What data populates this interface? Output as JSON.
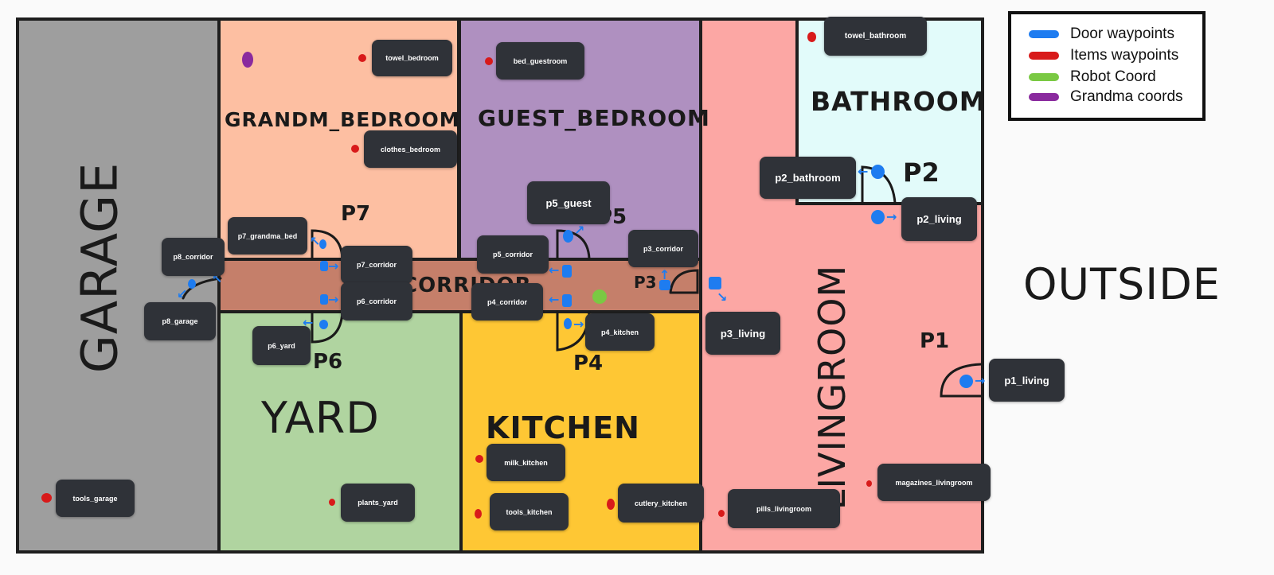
{
  "rooms": {
    "garage": "GARAGE",
    "grandma_bedroom": "GRANDM_BEDROOM",
    "guest_bedroom": "GUEST_BEDROOM",
    "bathroom": "BATHROOM",
    "corridor": "CORRIDOR",
    "yard": "YARD",
    "kitchen": "KITCHEN",
    "living_room": "LIVINGROOM",
    "outside": "OUTSIDE"
  },
  "door_labels": {
    "p1": "P1",
    "p2": "P2",
    "p3": "P3",
    "p4": "P4",
    "p5": "P5",
    "p6": "P6",
    "p7": "P7"
  },
  "door_waypoints": {
    "p1_living": "p1_living",
    "p2_bathroom": "p2_bathroom",
    "p2_living": "p2_living",
    "p3_corridor": "p3_corridor",
    "p3_living": "p3_living",
    "p4_corridor": "p4_corridor",
    "p4_kitchen": "p4_kitchen",
    "p5_corridor": "p5_corridor",
    "p5_guest": "p5_guest",
    "p6_corridor": "p6_corridor",
    "p6_yard": "p6_yard",
    "p7_corridor": "p7_corridor",
    "p7_grandma_bed": "p7_grandma_bed",
    "p8_corridor": "p8_corridor",
    "p8_garage": "p8_garage"
  },
  "item_waypoints": {
    "towel_bedroom": "towel_bedroom",
    "clothes_bedroom": "clothes_bedroom",
    "bed_guestroom": "bed_guestroom",
    "towel_bathroom": "towel_bathroom",
    "tools_garage": "tools_garage",
    "plants_yard": "plants_yard",
    "milk_kitchen": "milk_kitchen",
    "tools_kitchen": "tools_kitchen",
    "cutlery_kitchen": "cutlery_kitchen",
    "pills_livingroom": "pills_livingroom",
    "magazines_livingroom": "magazines_livingroom"
  },
  "legend": {
    "door": "Door waypoints",
    "items": "Items waypoints",
    "robot": "Robot Coord",
    "grandma": "Grandma coords"
  },
  "colors": {
    "garage": "#9e9e9e",
    "grandma_bedroom": "#fdbfa2",
    "guest_bedroom": "#af90c0",
    "bathroom": "#e2fbfa",
    "corridor": "#c57f6a",
    "yard": "#b0d4a0",
    "kitchen": "#fec734",
    "living_room": "#fca7a4",
    "door_waypoint": "#1e7cf0",
    "item_waypoint": "#d81a1a",
    "robot": "#7ac943",
    "grandma": "#8a2a9e"
  }
}
